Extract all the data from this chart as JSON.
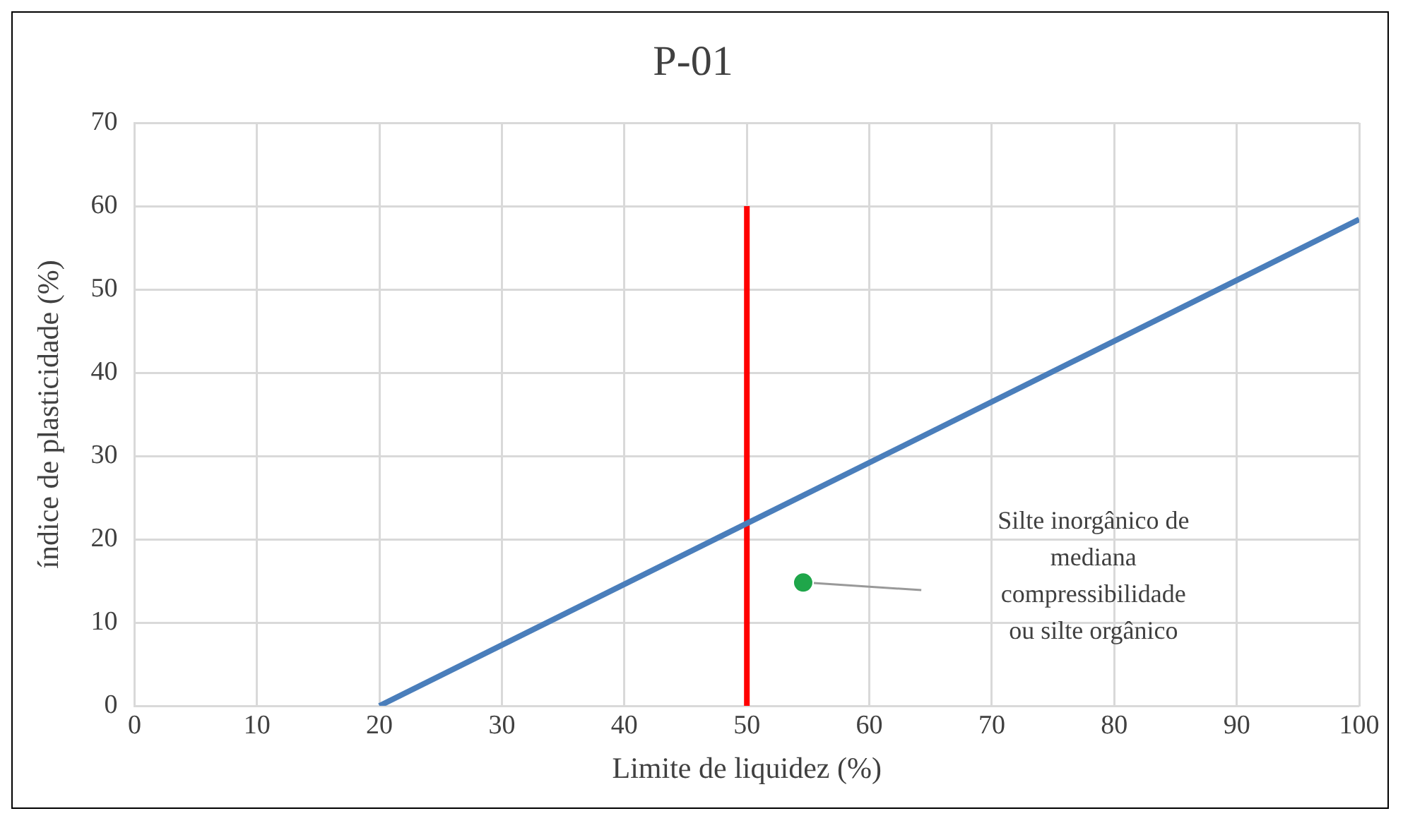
{
  "chart_data": {
    "type": "line",
    "title": "P-01",
    "xlabel": "Limite de liquidez (%)",
    "ylabel": "índice de plasticidade (%)",
    "xlim": [
      0,
      100
    ],
    "xticks": [
      0,
      10,
      20,
      30,
      40,
      50,
      60,
      70,
      80,
      90,
      100
    ],
    "ylim": [
      0,
      70
    ],
    "yticks": [
      0,
      10,
      20,
      30,
      40,
      50,
      60,
      70
    ],
    "grid": true,
    "legend": false,
    "marker": "none",
    "line_style": "solid",
    "series": [
      {
        "type": "line",
        "color": "#4a7ebb",
        "x": [
          20,
          100
        ],
        "values": [
          0,
          58.4
        ]
      },
      {
        "type": "line",
        "color": "#ff0000",
        "x": [
          50,
          50
        ],
        "values": [
          0,
          60
        ]
      },
      {
        "type": "scatter",
        "color": "#1fa64a",
        "marker": "circle",
        "x": [
          54.6
        ],
        "values": [
          14.8
        ]
      }
    ],
    "annotations": [
      "Silte inorgânico de\nmediana\ncompressibilidade\nou silte orgânico"
    ]
  }
}
